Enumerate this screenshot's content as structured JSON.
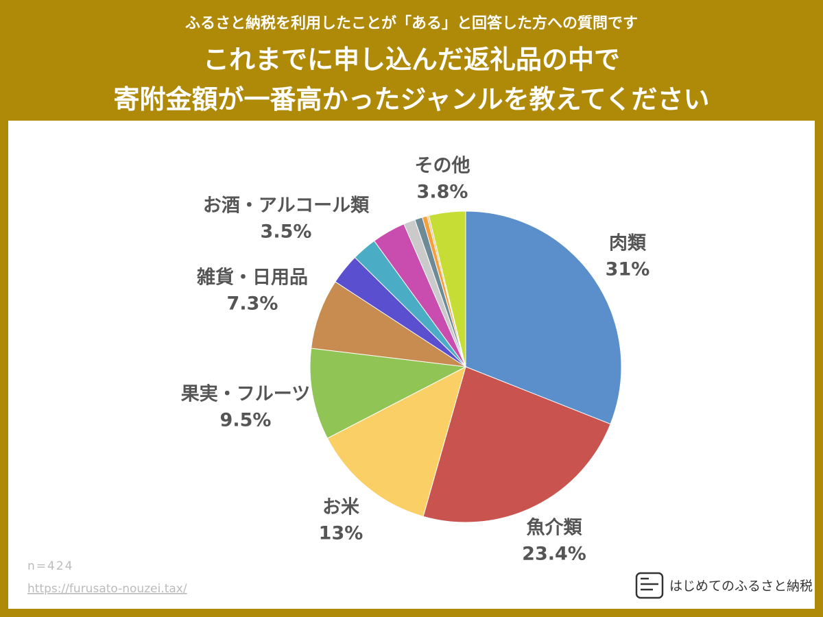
{
  "chart_data": {
    "type": "pie",
    "subtitle": "ふるさと納税を利用したことが「ある」と回答した方への質問です",
    "title": "これまでに申し込んだ返礼品の中で\n寄附金額が一番高かったジャンルを教えてください",
    "categories": [
      "肉類",
      "魚介類",
      "お米",
      "果実・フルーツ",
      "雑貨・日用品",
      null,
      null,
      "お酒・アルコール類",
      null,
      null,
      null,
      null,
      "その他"
    ],
    "values": [
      31,
      23.4,
      13,
      9.5,
      7.3,
      3.2,
      2.6,
      3.5,
      1.2,
      0.8,
      0.5,
      0.2,
      3.8
    ],
    "value_labels": [
      "31%",
      "23.4%",
      "13%",
      "9.5%",
      "7.3%",
      null,
      null,
      "3.5%",
      null,
      null,
      null,
      null,
      "3.8%"
    ],
    "colors": [
      "#5b8fcb",
      "#c9534f",
      "#f9cf66",
      "#90c556",
      "#c88b50",
      "#5a4fcf",
      "#4aacc5",
      "#c94dae",
      "#cacaca",
      "#6e8a96",
      "#f5a03c",
      "#f7c98a",
      "#c6dd35"
    ],
    "note": "n=424",
    "source": "https://furusato-nouzei.tax/",
    "brand": "はじめてのふるさと納税"
  }
}
